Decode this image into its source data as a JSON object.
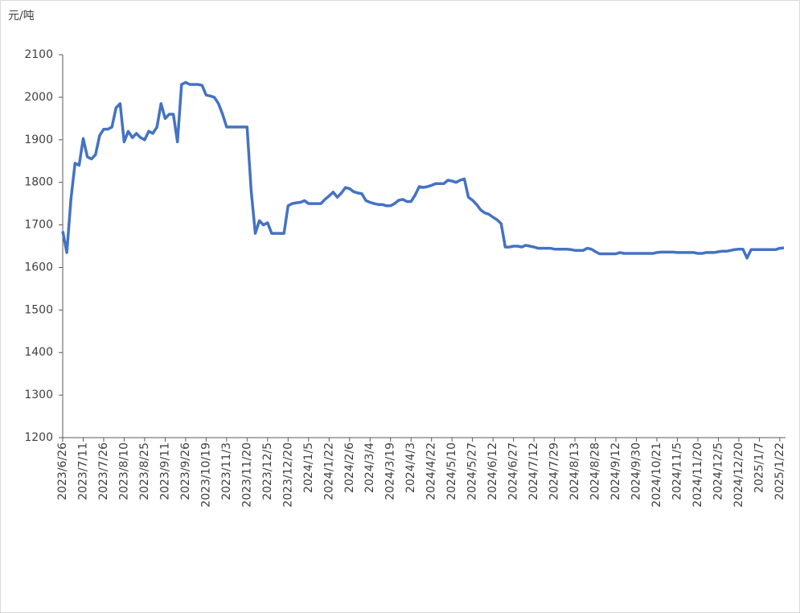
{
  "chart_data": {
    "type": "line",
    "y_label": "元/吨",
    "color": "#4472c4",
    "categories": [
      "2023/6/26",
      null,
      null,
      null,
      null,
      "2023/7/11",
      null,
      null,
      null,
      null,
      "2023/7/26",
      null,
      null,
      null,
      null,
      "2023/8/10",
      null,
      null,
      null,
      null,
      "2023/8/25",
      null,
      null,
      null,
      null,
      "2023/9/11",
      null,
      null,
      null,
      null,
      "2023/9/26",
      null,
      null,
      null,
      null,
      "2023/10/19",
      null,
      null,
      null,
      null,
      "2023/11/3",
      null,
      null,
      null,
      null,
      "2023/11/20",
      null,
      null,
      null,
      null,
      "2023/12/5",
      null,
      null,
      null,
      null,
      "2023/12/20",
      null,
      null,
      null,
      null,
      "2024/1/5",
      null,
      null,
      null,
      null,
      "2024/1/22",
      null,
      null,
      null,
      null,
      "2024/2/6",
      null,
      null,
      null,
      null,
      "2024/3/4",
      null,
      null,
      null,
      null,
      "2024/3/19",
      null,
      null,
      null,
      null,
      "2024/4/3",
      null,
      null,
      null,
      null,
      "2024/4/22",
      null,
      null,
      null,
      null,
      "2024/5/10",
      null,
      null,
      null,
      null,
      "2024/5/27",
      null,
      null,
      null,
      null,
      "2024/6/12",
      null,
      null,
      null,
      null,
      "2024/6/27",
      null,
      null,
      null,
      null,
      "2024/7/12",
      null,
      null,
      null,
      null,
      "2024/7/29",
      null,
      null,
      null,
      null,
      "2024/8/13",
      null,
      null,
      null,
      null,
      "2024/8/28",
      null,
      null,
      null,
      null,
      "2024/9/12",
      null,
      null,
      null,
      null,
      "2024/9/30",
      null,
      null,
      null,
      null,
      "2024/10/21",
      null,
      null,
      null,
      null,
      "2024/11/5",
      null,
      null,
      null,
      null,
      "2024/11/20",
      null,
      null,
      null,
      null,
      "2024/12/5",
      null,
      null,
      null,
      null,
      "2024/12/20",
      null,
      null,
      null,
      null,
      "2025/1/7",
      null,
      null,
      null,
      null,
      "2025/1/22",
      null
    ],
    "values": [
      1685,
      1635,
      1760,
      1845,
      1840,
      1903,
      1860,
      1855,
      1865,
      1910,
      1925,
      1925,
      1930,
      1975,
      1985,
      1895,
      1920,
      1905,
      1915,
      1905,
      1900,
      1920,
      1915,
      1930,
      1985,
      1950,
      1960,
      1960,
      1895,
      2030,
      2035,
      2030,
      2030,
      2030,
      2028,
      2005,
      2003,
      2000,
      1985,
      1960,
      1930,
      1930,
      1930,
      1930,
      1930,
      1930,
      1780,
      1680,
      1710,
      1700,
      1705,
      1680,
      1680,
      1680,
      1680,
      1745,
      1750,
      1752,
      1753,
      1757,
      1750,
      1750,
      1750,
      1750,
      1760,
      1768,
      1777,
      1765,
      1775,
      1788,
      1785,
      1778,
      1775,
      1773,
      1757,
      1753,
      1750,
      1748,
      1748,
      1745,
      1745,
      1750,
      1758,
      1760,
      1755,
      1755,
      1770,
      1790,
      1788,
      1790,
      1793,
      1797,
      1797,
      1797,
      1805,
      1803,
      1800,
      1805,
      1808,
      1765,
      1758,
      1748,
      1735,
      1728,
      1725,
      1718,
      1712,
      1703,
      1648,
      1648,
      1650,
      1650,
      1648,
      1652,
      1650,
      1648,
      1645,
      1645,
      1645,
      1645,
      1643,
      1643,
      1643,
      1643,
      1642,
      1640,
      1640,
      1640,
      1645,
      1643,
      1637,
      1632,
      1632,
      1632,
      1632,
      1632,
      1635,
      1633,
      1633,
      1633,
      1633,
      1633,
      1633,
      1633,
      1633,
      1635,
      1636,
      1636,
      1636,
      1636,
      1635,
      1635,
      1635,
      1635,
      1635,
      1633,
      1633,
      1635,
      1635,
      1635,
      1637,
      1638,
      1638,
      1640,
      1642,
      1643,
      1643,
      1622,
      1642,
      1642,
      1642,
      1642,
      1642,
      1642,
      1642,
      1645,
      1646
    ],
    "ylim": [
      1200,
      2100
    ],
    "yticks": [
      1200,
      1300,
      1400,
      1500,
      1600,
      1700,
      1800,
      1900,
      2000,
      2100
    ]
  }
}
